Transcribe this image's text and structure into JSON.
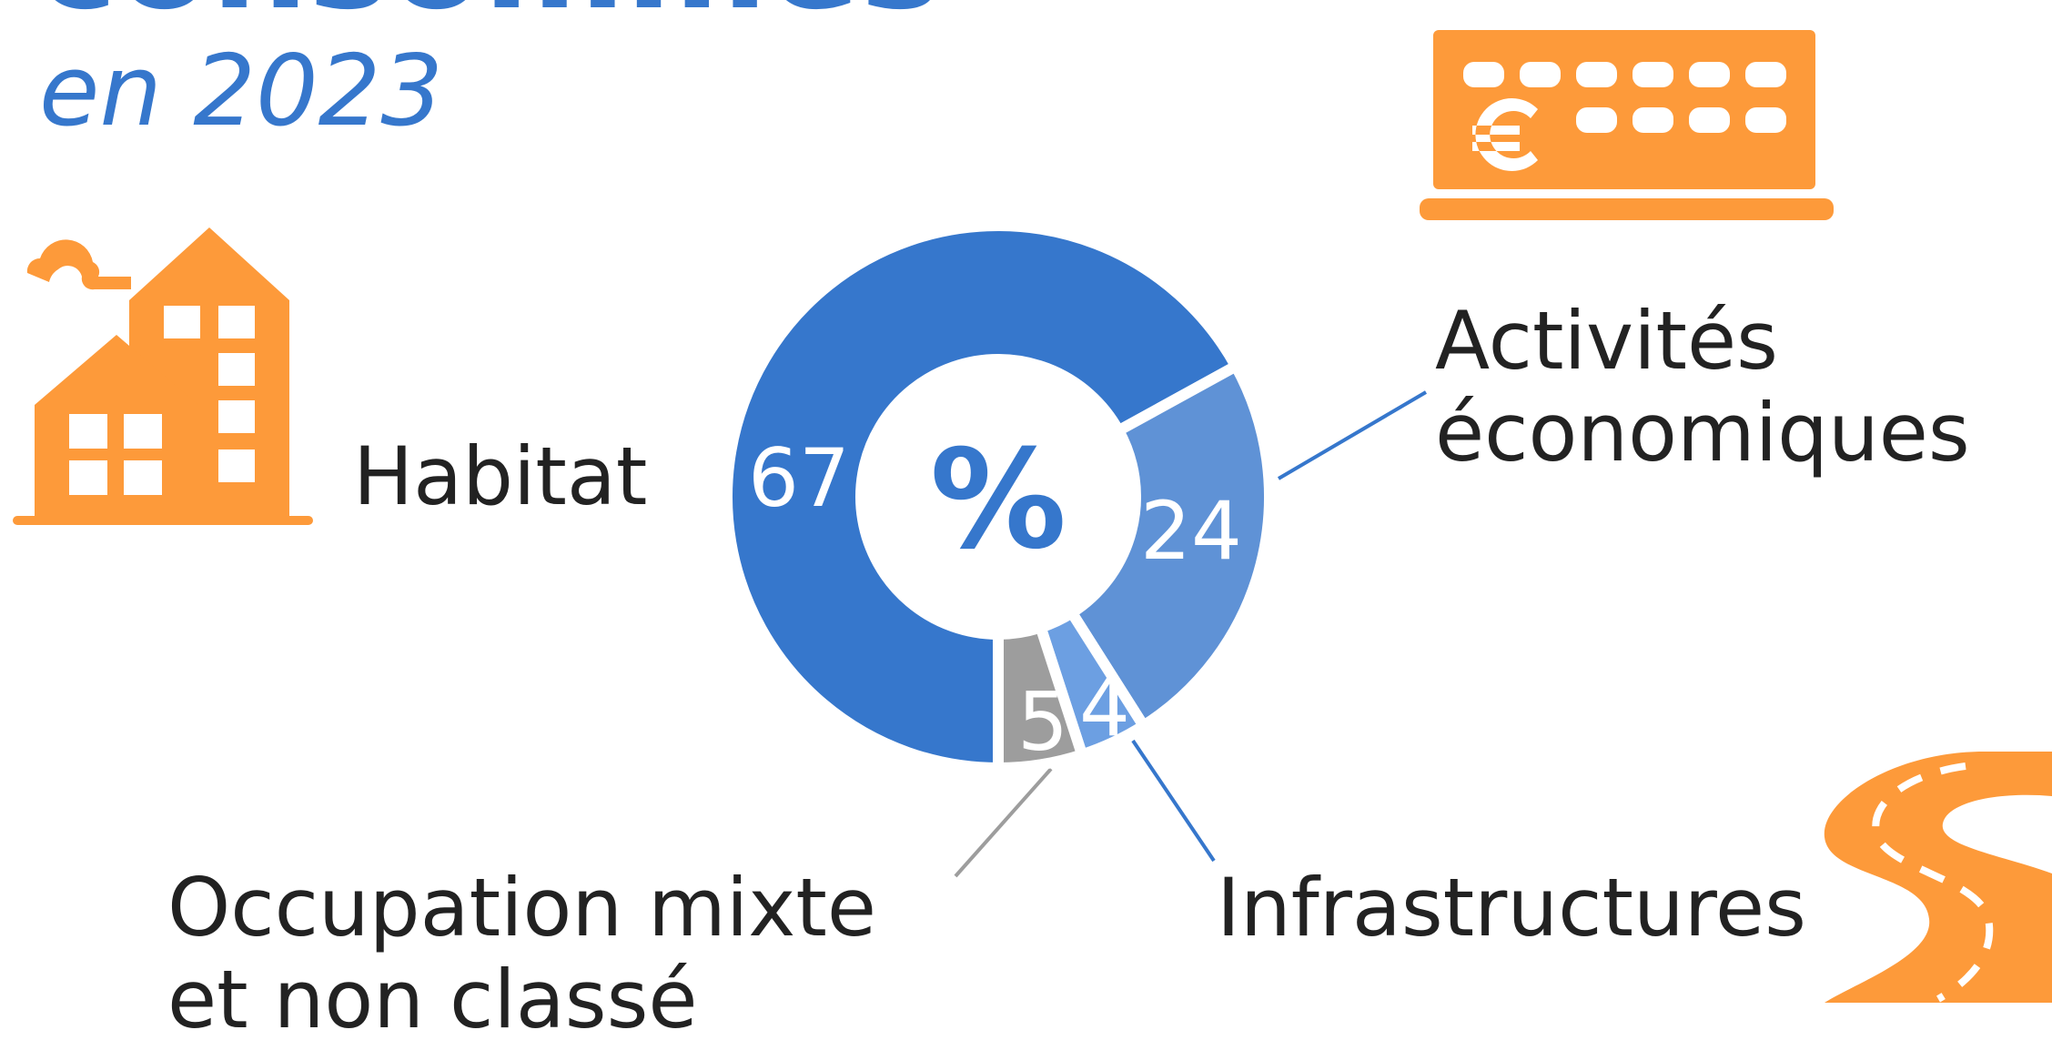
{
  "chart_data": {
    "type": "donut",
    "title": "consommés",
    "subtitle": "en 2023",
    "center_label": "%",
    "categories": [
      "Habitat",
      "Activités économiques",
      "Infrastructures",
      "Occupation mixte et non classé"
    ],
    "values": [
      67,
      24,
      4,
      5
    ],
    "colors": [
      "#3677cc",
      "#5f92d6",
      "#6c9fe2",
      "#9d9d9d"
    ]
  }
}
